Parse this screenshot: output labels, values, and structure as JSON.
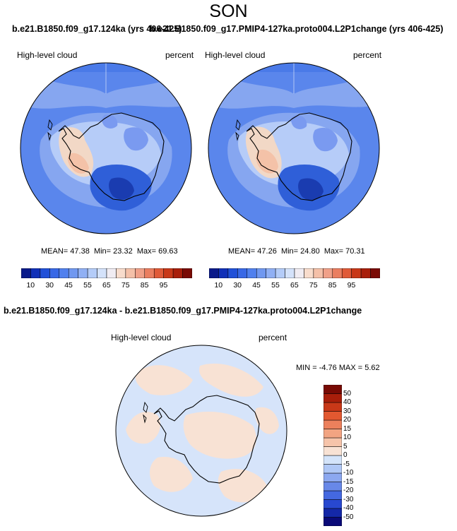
{
  "page": {
    "season": "SON",
    "header_left": "b.e21.B1850.f09_g17.124ka (yrs 406-425)",
    "header_right": "b.e21.B1850.f09_g17.PMIP4-127ka.proto004.L2P1change (yrs 406-425)",
    "diff_title": "b.e21.B1850.f09_g17.124ka - b.e21.B1850.f09_g17.PMIP4-127ka.proto004.L2P1change"
  },
  "panels": [
    {
      "variable": "High-level cloud",
      "units": "percent",
      "stats": {
        "mean_label": "MEAN=",
        "mean": "47.38",
        "min_label": "Min=",
        "min": "23.32",
        "max_label": "Max=",
        "max": "69.63"
      }
    },
    {
      "variable": "High-level cloud",
      "units": "percent",
      "stats": {
        "mean_label": "MEAN=",
        "mean": "47.26",
        "min_label": "Min=",
        "min": "24.80",
        "max_label": "Max=",
        "max": "70.31"
      }
    }
  ],
  "diff_panel": {
    "variable": "High-level cloud",
    "units": "percent",
    "stats": {
      "min_label": "MIN =",
      "min": "-4.76",
      "max_label": "MAX =",
      "max": "5.62"
    }
  },
  "colorbar_abs": {
    "colors": [
      "#0a1a8a",
      "#1030b8",
      "#2050d8",
      "#3868e6",
      "#5080ee",
      "#7098f0",
      "#90b0f4",
      "#b4ccf8",
      "#d4e2fa",
      "#f0ecf2",
      "#f8dccc",
      "#f4c0a8",
      "#f0a088",
      "#ea7e60",
      "#e05a38",
      "#c83818",
      "#a81e0a",
      "#7a0a04"
    ],
    "tick_labels": [
      "10",
      "30",
      "45",
      "55",
      "65",
      "75",
      "85",
      "95"
    ]
  },
  "colorbar_diff": {
    "colors": [
      "#0a0a78",
      "#1428a8",
      "#2848d0",
      "#4468e0",
      "#6888e8",
      "#8ca8f0",
      "#b0c8f6",
      "#d4e4fa",
      "#f8e2d4",
      "#f6c4aa",
      "#f2a482",
      "#ec805c",
      "#e25830",
      "#c83818",
      "#a81e0a",
      "#780a04"
    ],
    "tick_labels": [
      "50",
      "40",
      "30",
      "20",
      "15",
      "10",
      "5",
      "0",
      "-5",
      "-10",
      "-15",
      "-20",
      "-30",
      "-40",
      "-50"
    ]
  }
}
